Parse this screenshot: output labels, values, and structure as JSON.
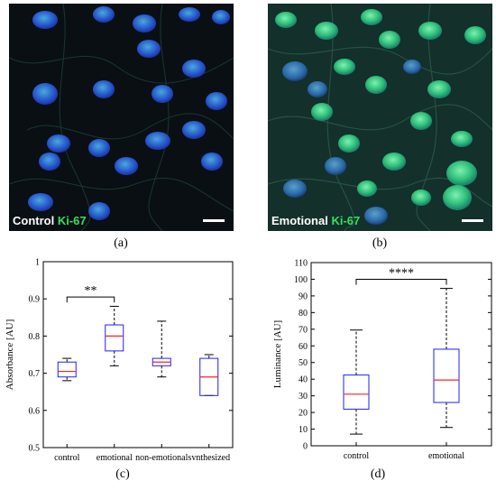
{
  "panels": {
    "a": {
      "label_white": "Control",
      "label_green": "Ki-67",
      "caption": "(a)"
    },
    "b": {
      "label_white": "Emotional",
      "label_green": "Ki-67",
      "caption": "(b)"
    },
    "c": {
      "caption": "(c)"
    },
    "d": {
      "caption": "(d)"
    }
  },
  "colors": {
    "box": "#1f1fff",
    "median": "#ff2020",
    "whisker": "#000000"
  },
  "chart_data": [
    {
      "type": "box",
      "ylabel": "Absorbance [AU]",
      "ylim": [
        0.5,
        1.0
      ],
      "yticks": [
        "0.5",
        "0.6",
        "0.7",
        "0.8",
        "0.9",
        "1"
      ],
      "categories": [
        "control",
        "emotional",
        "non-emotional",
        "synthesized"
      ],
      "boxes": [
        {
          "min": 0.68,
          "q1": 0.69,
          "median": 0.705,
          "q3": 0.73,
          "max": 0.74
        },
        {
          "min": 0.72,
          "q1": 0.76,
          "median": 0.8,
          "q3": 0.83,
          "max": 0.88
        },
        {
          "min": 0.69,
          "q1": 0.72,
          "median": 0.73,
          "q3": 0.74,
          "max": 0.84
        },
        {
          "min": 0.64,
          "q1": 0.64,
          "median": 0.69,
          "q3": 0.74,
          "max": 0.75
        }
      ],
      "significance": {
        "from": 0,
        "to": 1,
        "label": "**",
        "y": 0.905
      }
    },
    {
      "type": "box",
      "ylabel": "Luminance [AU]",
      "ylim": [
        0,
        110
      ],
      "yticks": [
        "0",
        "10",
        "20",
        "30",
        "40",
        "50",
        "60",
        "70",
        "80",
        "90",
        "100",
        "110"
      ],
      "categories": [
        "control",
        "emotional"
      ],
      "boxes": [
        {
          "min": 7,
          "q1": 22,
          "median": 31,
          "q3": 42.5,
          "max": 69.5
        },
        {
          "min": 11,
          "q1": 26,
          "median": 39.5,
          "q3": 58,
          "max": 94.5
        }
      ],
      "significance": {
        "from": 0,
        "to": 1,
        "label": "****",
        "y": 100
      }
    }
  ]
}
